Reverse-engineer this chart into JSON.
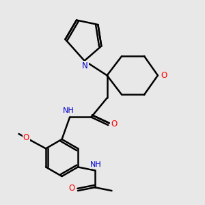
{
  "background_color": "#e8e8e8",
  "bond_color": "#000000",
  "nitrogen_color": "#0000cd",
  "oxygen_color": "#ff0000",
  "line_width": 1.8,
  "figure_size": [
    3.0,
    3.0
  ],
  "dpi": 100,
  "xlim": [
    0.5,
    8.5
  ],
  "ylim": [
    0.5,
    9.5
  ]
}
